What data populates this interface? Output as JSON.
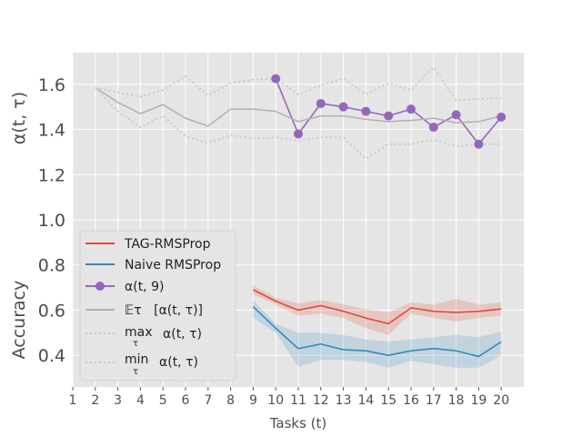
{
  "chart_data": {
    "type": "line",
    "title": "",
    "xlabel": "Tasks (t)",
    "ylabel_upper": "α(t, τ)",
    "ylabel_lower": "Accuracy",
    "xlim": [
      1,
      21
    ],
    "ylim": [
      0.26,
      1.74
    ],
    "x_ticks": [
      1,
      2,
      3,
      4,
      5,
      6,
      7,
      8,
      9,
      10,
      11,
      12,
      13,
      14,
      15,
      16,
      17,
      18,
      19,
      20
    ],
    "x_tick_labels": [
      "1",
      "2",
      "3",
      "4",
      "5",
      "6",
      "7",
      "8",
      "9",
      "10",
      "11",
      "12",
      "13",
      "14",
      "15",
      "16",
      "17",
      "18",
      "19",
      "20"
    ],
    "y_ticks": [
      0.4,
      0.6,
      0.8,
      1.0,
      1.2,
      1.4,
      1.6
    ],
    "y_tick_labels": [
      "0.4",
      "0.6",
      "0.8",
      "1.0",
      "1.2",
      "1.4",
      "1.6"
    ],
    "grid": true,
    "legend_position": "lower-left",
    "colors": {
      "background": "#e5e5e5",
      "grid": "#ffffff",
      "tag": "#e24a33",
      "naive": "#348abd",
      "alpha9": "#9467bd",
      "expectation": "#b0b0b0",
      "minmax": "#c8c8c8"
    },
    "series": [
      {
        "name": "TAG-RMSProp",
        "key": "tag",
        "x": [
          9,
          10,
          11,
          12,
          13,
          14,
          15,
          16,
          17,
          18,
          19,
          20
        ],
        "values": [
          0.69,
          0.64,
          0.6,
          0.62,
          0.595,
          0.565,
          0.54,
          0.61,
          0.595,
          0.59,
          0.595,
          0.605
        ],
        "band_lower": [
          0.67,
          0.625,
          0.575,
          0.585,
          0.565,
          0.52,
          0.49,
          0.585,
          0.565,
          0.55,
          0.565,
          0.575
        ],
        "band_upper": [
          0.71,
          0.655,
          0.63,
          0.645,
          0.625,
          0.605,
          0.59,
          0.635,
          0.625,
          0.65,
          0.625,
          0.635
        ]
      },
      {
        "name": "Naive RMSProp",
        "key": "naive",
        "x": [
          9,
          10,
          11,
          12,
          13,
          14,
          15,
          16,
          17,
          18,
          19,
          20
        ],
        "values": [
          0.615,
          0.52,
          0.43,
          0.45,
          0.425,
          0.42,
          0.4,
          0.42,
          0.43,
          0.42,
          0.395,
          0.46
        ],
        "band_lower": [
          0.565,
          0.5,
          0.35,
          0.38,
          0.38,
          0.37,
          0.345,
          0.375,
          0.36,
          0.345,
          0.345,
          0.4
        ],
        "band_upper": [
          0.645,
          0.54,
          0.5,
          0.5,
          0.49,
          0.47,
          0.46,
          0.47,
          0.48,
          0.49,
          0.48,
          0.505
        ]
      },
      {
        "name": "α(t, 9)",
        "key": "alpha9",
        "x": [
          10,
          11,
          12,
          13,
          14,
          15,
          16,
          17,
          18,
          19,
          20
        ],
        "values": [
          1.625,
          1.38,
          1.515,
          1.5,
          1.48,
          1.46,
          1.49,
          1.41,
          1.465,
          1.335,
          1.455
        ]
      },
      {
        "name": "𝔼τ [α(t, τ)]",
        "key": "expectation",
        "x": [
          2,
          3,
          4,
          5,
          6,
          7,
          8,
          9,
          10,
          11,
          12,
          13,
          14,
          15,
          16,
          17,
          18,
          19,
          20
        ],
        "values": [
          1.585,
          1.52,
          1.47,
          1.51,
          1.45,
          1.415,
          1.49,
          1.49,
          1.48,
          1.435,
          1.46,
          1.46,
          1.445,
          1.435,
          1.44,
          1.45,
          1.43,
          1.435,
          1.46
        ]
      },
      {
        "name": "max α(t, τ)",
        "key": "max",
        "x": [
          2,
          3,
          4,
          5,
          6,
          7,
          8,
          9,
          10,
          11,
          12,
          13,
          14,
          15,
          16,
          17,
          18,
          19,
          20
        ],
        "values": [
          1.585,
          1.565,
          1.545,
          1.575,
          1.635,
          1.55,
          1.605,
          1.62,
          1.625,
          1.555,
          1.595,
          1.625,
          1.555,
          1.605,
          1.575,
          1.675,
          1.53,
          1.535,
          1.54
        ]
      },
      {
        "name": "min α(t, τ)",
        "key": "min",
        "x": [
          2,
          3,
          4,
          5,
          6,
          7,
          8,
          9,
          10,
          11,
          12,
          13,
          14,
          15,
          16,
          17,
          18,
          19,
          20
        ],
        "values": [
          1.585,
          1.48,
          1.41,
          1.46,
          1.37,
          1.34,
          1.375,
          1.36,
          1.365,
          1.35,
          1.365,
          1.365,
          1.27,
          1.335,
          1.335,
          1.355,
          1.325,
          1.335,
          1.335
        ]
      }
    ],
    "legend": {
      "tag": "TAG-RMSProp",
      "naive": "Naive RMSProp",
      "alpha9": "α(t, 9)",
      "expectation_prefix": "𝔼τ",
      "expectation_body": "[α(t, τ)]",
      "max_op": "max",
      "min_op": "min",
      "op_sub": "τ",
      "minmax_body": "α(t, τ)"
    }
  }
}
